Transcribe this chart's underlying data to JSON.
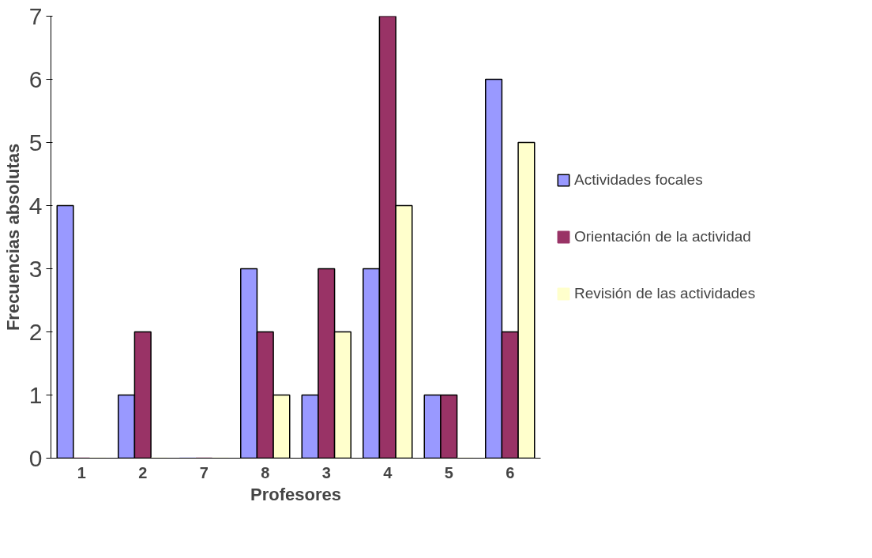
{
  "chart_data": {
    "type": "bar",
    "xlabel": "Profesores",
    "ylabel": "Frecuencias absolutas",
    "categories": [
      "1",
      "2",
      "7",
      "8",
      "3",
      "4",
      "5",
      "6"
    ],
    "series": [
      {
        "name": "Actividades focales",
        "color": "#9999ff",
        "values": [
          4,
          1,
          0,
          3,
          1,
          3,
          1,
          6
        ]
      },
      {
        "name": "Orientación de la actividad",
        "color": "#993366",
        "values": [
          0,
          2,
          0,
          2,
          3,
          7,
          1,
          2
        ]
      },
      {
        "name": "Revisión de las actividades",
        "color": "#ffffcc",
        "values": [
          0,
          0,
          0,
          1,
          2,
          4,
          0,
          5
        ]
      }
    ],
    "ylim": [
      0,
      7
    ],
    "yticks": [
      0,
      1,
      2,
      3,
      4,
      5,
      6,
      7
    ],
    "grid": false,
    "legend": "right"
  }
}
